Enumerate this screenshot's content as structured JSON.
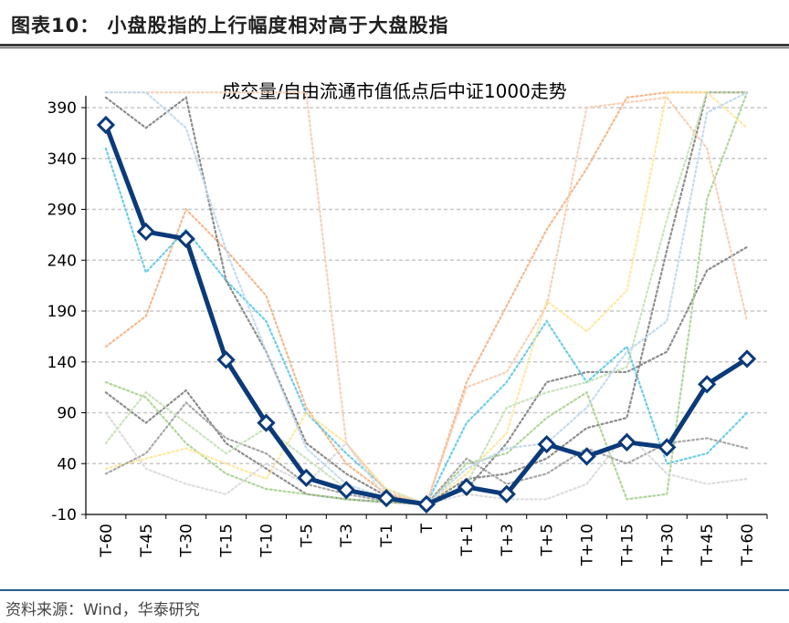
{
  "figure": {
    "title": "图表10：  小盘股指的上行幅度相对高于大盘股指",
    "source": "资料来源：Wind，华泰研究"
  },
  "chart_data": {
    "type": "line",
    "title": "成交量/自由流通市值低点后中证1000走势",
    "categories": [
      "T-60",
      "T-45",
      "T-30",
      "T-15",
      "T-10",
      "T-5",
      "T-3",
      "T-1",
      "T",
      "T+1",
      "T+3",
      "T+5",
      "T+10",
      "T+15",
      "T+30",
      "T+45",
      "T+60"
    ],
    "yticks": [
      -10,
      40,
      90,
      140,
      190,
      240,
      290,
      340,
      390
    ],
    "ylim": [
      -10,
      405
    ],
    "grid": true,
    "main_color": "#0b3a7a",
    "series": [
      {
        "values": [
          373,
          268,
          261,
          142,
          80,
          26,
          14,
          6,
          0,
          17,
          10,
          59,
          47,
          61,
          56,
          118,
          143
        ],
        "main": true
      },
      {
        "values": [
          110,
          80,
          112,
          60,
          35,
          10,
          5,
          2,
          0,
          15,
          60,
          120,
          130,
          130,
          150,
          230,
          253
        ],
        "color": "#7f7f7f"
      },
      {
        "values": [
          155,
          185,
          290,
          250,
          205,
          95,
          40,
          10,
          0,
          120,
          195,
          270,
          330,
          400,
          405,
          405,
          405
        ],
        "color": "#f4b183"
      },
      {
        "values": [
          350,
          228,
          270,
          220,
          180,
          90,
          50,
          15,
          0,
          80,
          120,
          180,
          120,
          155,
          40,
          50,
          90
        ],
        "color": "#5bc8e8"
      },
      {
        "values": [
          400,
          370,
          400,
          220,
          150,
          60,
          30,
          8,
          0,
          25,
          30,
          45,
          75,
          85,
          250,
          405,
          405
        ],
        "color": "#808080"
      },
      {
        "values": [
          120,
          105,
          60,
          30,
          15,
          10,
          5,
          2,
          0,
          40,
          50,
          85,
          110,
          5,
          10,
          300,
          405
        ],
        "color": "#a9d18e"
      },
      {
        "values": [
          35,
          45,
          55,
          40,
          25,
          90,
          60,
          15,
          0,
          30,
          70,
          200,
          170,
          210,
          405,
          405,
          370
        ],
        "color": "#ffe699"
      },
      {
        "values": [
          405,
          405,
          405,
          405,
          405,
          405,
          60,
          12,
          0,
          115,
          130,
          195,
          390,
          395,
          400,
          350,
          180
        ],
        "color": "#f8cbad"
      },
      {
        "values": [
          30,
          50,
          100,
          65,
          50,
          20,
          10,
          3,
          0,
          45,
          20,
          30,
          55,
          40,
          60,
          65,
          55
        ],
        "color": "#9e9e9e"
      },
      {
        "values": [
          90,
          35,
          20,
          10,
          40,
          20,
          60,
          5,
          0,
          10,
          5,
          5,
          20,
          70,
          30,
          20,
          25
        ],
        "color": "#d9d9d9"
      },
      {
        "values": [
          60,
          110,
          80,
          50,
          75,
          45,
          15,
          5,
          0,
          20,
          95,
          110,
          120,
          135,
          280,
          405,
          405
        ],
        "color": "#c5e0b4"
      },
      {
        "values": [
          405,
          405,
          370,
          250,
          150,
          55,
          20,
          6,
          0,
          35,
          55,
          60,
          95,
          150,
          180,
          385,
          405
        ],
        "color": "#bdd7ee"
      }
    ]
  }
}
